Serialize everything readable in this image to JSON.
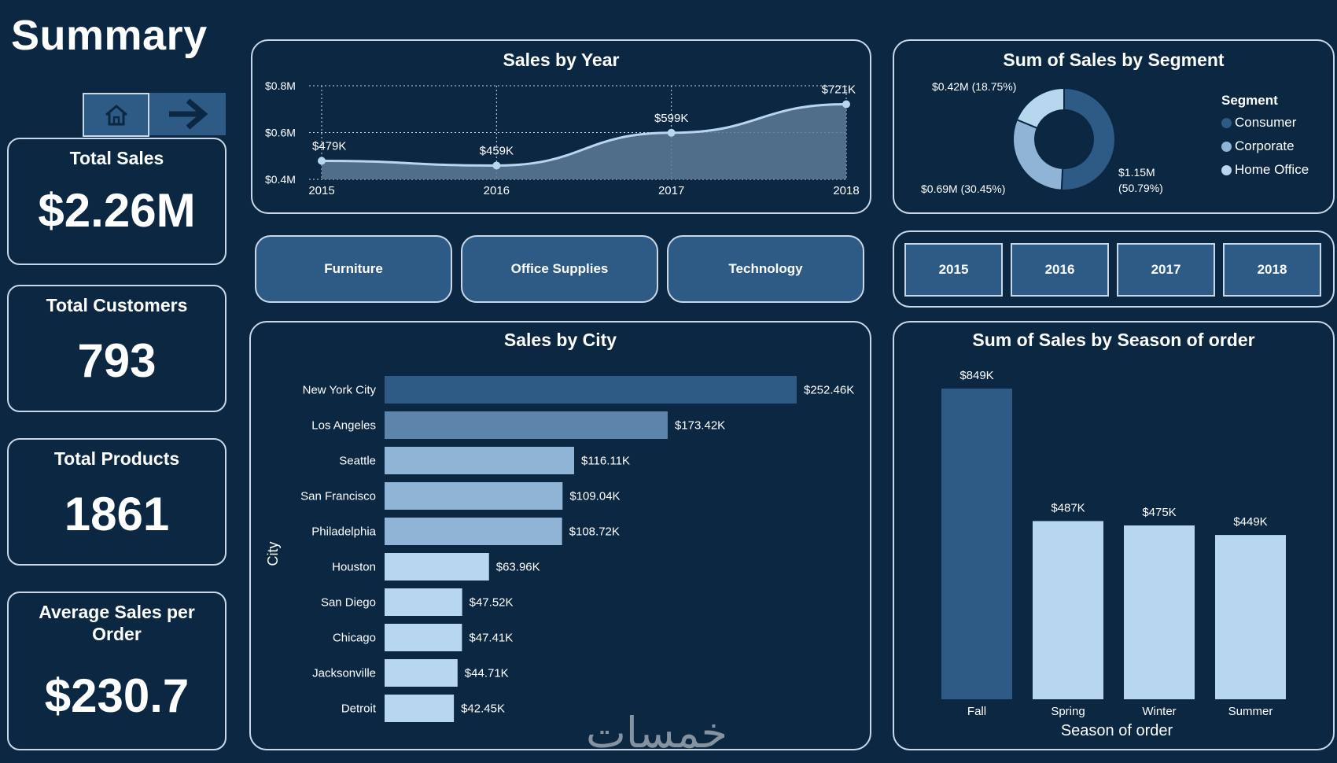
{
  "page": {
    "title": "Summary"
  },
  "nav": {
    "home_icon": "home-icon",
    "next_icon": "arrow-right-icon"
  },
  "kpis": {
    "total_sales": {
      "label": "Total Sales",
      "value": "$2.26M"
    },
    "total_customers": {
      "label": "Total Customers",
      "value": "793"
    },
    "total_products": {
      "label": "Total Products",
      "value": "1861"
    },
    "avg_sales": {
      "label": "Average Sales per Order",
      "value": "$230.7"
    }
  },
  "category_buttons": [
    "Furniture",
    "Office Supplies",
    "Technology"
  ],
  "year_buttons": [
    "2015",
    "2016",
    "2017",
    "2018"
  ],
  "watermark": "خمسات",
  "colors": {
    "background": "#0b2742",
    "panel_border": "#c9d8e8",
    "button_fill": "#2e5a86",
    "consumer": "#2e5a86",
    "corporate": "#8fb4d6",
    "home_office": "#b7d7ee"
  },
  "chart_data": [
    {
      "type": "area",
      "title": "Sales by Year",
      "x": [
        "2015",
        "2016",
        "2017",
        "2018"
      ],
      "values": [
        479,
        459,
        599,
        721
      ],
      "data_labels": [
        "$479K",
        "$459K",
        "$599K",
        "$721K"
      ],
      "y_ticks": [
        {
          "value": 400,
          "label": "$0.4M"
        },
        {
          "value": 600,
          "label": "$0.6M"
        },
        {
          "value": 800,
          "label": "$0.8M"
        }
      ],
      "ylim": [
        400,
        800
      ],
      "grid": true
    },
    {
      "type": "pie",
      "title": "Sum of Sales by Segment",
      "legend_title": "Segment",
      "legend_position": "right",
      "slices": [
        {
          "name": "Consumer",
          "value": 1.15,
          "percent": 50.79,
          "label": "$1.15M (50.79%)",
          "color": "#2e5a86"
        },
        {
          "name": "Corporate",
          "value": 0.69,
          "percent": 30.45,
          "label": "$0.69M (30.45%)",
          "color": "#8fb4d6"
        },
        {
          "name": "Home Office",
          "value": 0.42,
          "percent": 18.75,
          "label": "$0.42M (18.75%)",
          "color": "#b7d7ee"
        }
      ]
    },
    {
      "type": "bar",
      "orientation": "horizontal",
      "title": "Sales by City",
      "ylabel": "City",
      "categories": [
        "New York City",
        "Los Angeles",
        "Seattle",
        "San Francisco",
        "Philadelphia",
        "Houston",
        "San Diego",
        "Chicago",
        "Jacksonville",
        "Detroit"
      ],
      "values": [
        252.46,
        173.42,
        116.11,
        109.04,
        108.72,
        63.96,
        47.52,
        47.41,
        44.71,
        42.45
      ],
      "data_labels": [
        "$252.46K",
        "$173.42K",
        "$116.11K",
        "$109.04K",
        "$108.72K",
        "$63.96K",
        "$47.52K",
        "$47.41K",
        "$44.71K",
        "$42.45K"
      ]
    },
    {
      "type": "bar",
      "title": "Sum of Sales by Season of order",
      "xlabel": "Season of order",
      "categories": [
        "Fall",
        "Spring",
        "Winter",
        "Summer"
      ],
      "values": [
        849,
        487,
        475,
        449
      ],
      "data_labels": [
        "$849K",
        "$487K",
        "$475K",
        "$449K"
      ]
    }
  ]
}
